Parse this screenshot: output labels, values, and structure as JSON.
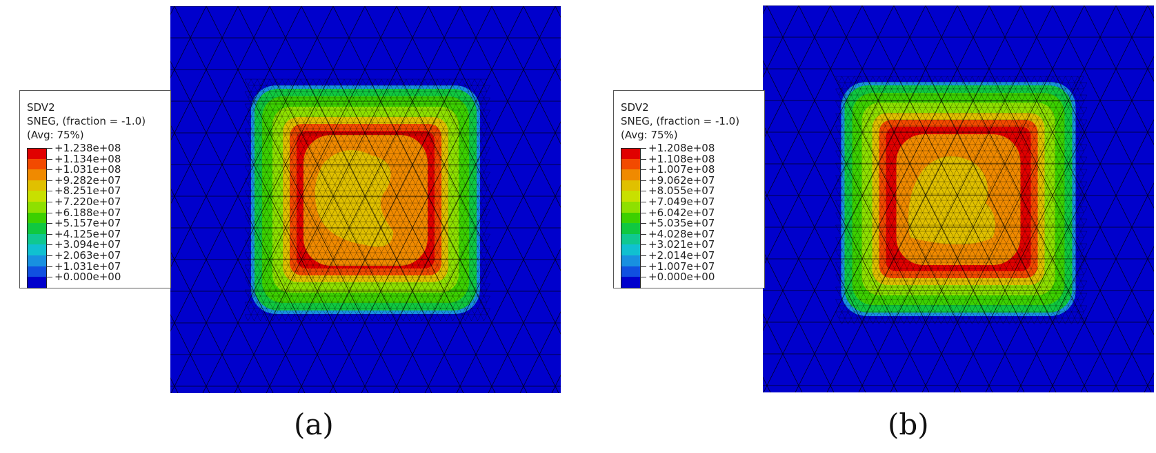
{
  "panels": [
    {
      "caption": "(a)",
      "legend": {
        "variable": "SDV2",
        "section": "SNEG, (fraction = -1.0)",
        "averaging": "(Avg: 75%)",
        "values": [
          "+1.238e+08",
          "+1.134e+08",
          "+1.031e+08",
          "+9.282e+07",
          "+8.251e+07",
          "+7.220e+07",
          "+6.188e+07",
          "+5.157e+07",
          "+4.125e+07",
          "+3.094e+07",
          "+2.063e+07",
          "+1.031e+07",
          "+0.000e+00"
        ]
      }
    },
    {
      "caption": "(b)",
      "legend": {
        "variable": "SDV2",
        "section": "SNEG, (fraction = -1.0)",
        "averaging": "(Avg: 75%)",
        "values": [
          "+1.208e+08",
          "+1.108e+08",
          "+1.007e+08",
          "+9.062e+07",
          "+8.055e+07",
          "+7.049e+07",
          "+6.042e+07",
          "+5.035e+07",
          "+4.028e+07",
          "+3.021e+07",
          "+2.014e+07",
          "+1.007e+07",
          "+0.000e+00"
        ]
      }
    }
  ],
  "colors": {
    "background_field": "#0000cc",
    "contour_scale": [
      "#e00000",
      "#f24a00",
      "#f08a00",
      "#e0c000",
      "#c8e000",
      "#8ee000",
      "#3cd000",
      "#10c840",
      "#10c890",
      "#10c0d0",
      "#1890e0",
      "#1050e0",
      "#0000cc"
    ],
    "mesh_lines": "#000000"
  }
}
